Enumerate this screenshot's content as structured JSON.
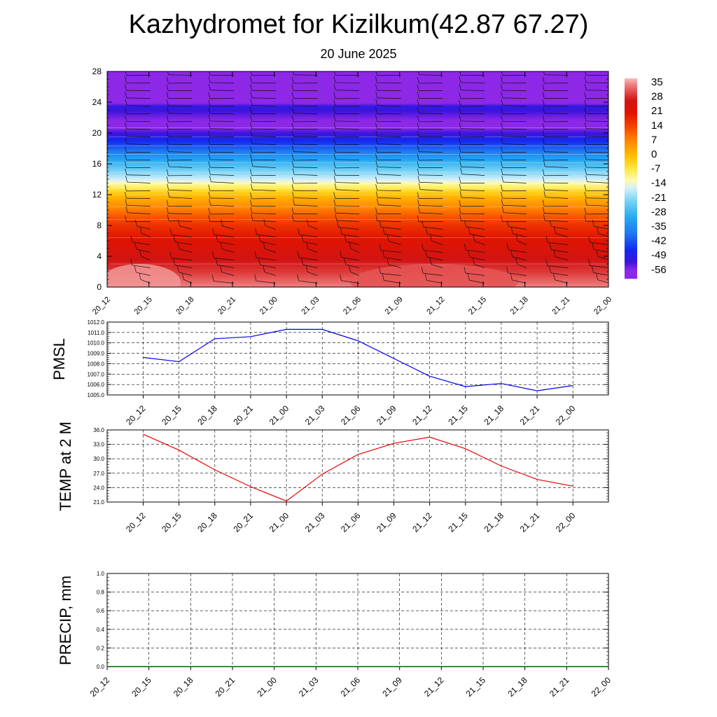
{
  "header": {
    "title": "Kazhydromet for Kizilkum(42.87 67.27)",
    "subtitle": "20 June 2025"
  },
  "time_labels": [
    "20_12",
    "20_15",
    "20_18",
    "20_21",
    "21_00",
    "21_03",
    "21_06",
    "21_09",
    "21_12",
    "21_15",
    "21_18",
    "21_21",
    "22_00"
  ],
  "chart_data": [
    {
      "type": "heatmap",
      "name": "temperature-height cross-section",
      "x_categories": [
        "20_12",
        "20_15",
        "20_18",
        "20_21",
        "21_00",
        "21_03",
        "21_06",
        "21_09",
        "21_12",
        "21_15",
        "21_18",
        "21_21",
        "22_00"
      ],
      "y_ticks": [
        0,
        4,
        8,
        12,
        16,
        20,
        24,
        28
      ],
      "ylim": [
        0,
        28
      ],
      "colorbar_labels": [
        "35",
        "28",
        "21",
        "14",
        "7",
        "0",
        "-7",
        "-14",
        "-21",
        "-28",
        "-35",
        "-42",
        "-49",
        "-56"
      ],
      "colorbar_range": [
        -60,
        38
      ],
      "temperature_profile_by_height": [
        {
          "h": 0,
          "t": 35
        },
        {
          "h": 2,
          "t": 30
        },
        {
          "h": 4,
          "t": 26
        },
        {
          "h": 6,
          "t": 22
        },
        {
          "h": 8,
          "t": 17
        },
        {
          "h": 10,
          "t": 9
        },
        {
          "h": 12,
          "t": 0
        },
        {
          "h": 13.5,
          "t": -12
        },
        {
          "h": 14,
          "t": -16
        },
        {
          "h": 16,
          "t": -27
        },
        {
          "h": 18,
          "t": -40
        },
        {
          "h": 20,
          "t": -52
        },
        {
          "h": 21,
          "t": -58
        },
        {
          "h": 22,
          "t": -55
        },
        {
          "h": 23.5,
          "t": -50
        },
        {
          "h": 24,
          "t": -60
        },
        {
          "h": 28,
          "t": -60
        }
      ],
      "wind_barbs": "shown"
    },
    {
      "type": "line",
      "name": "PMSL",
      "ylabel": "PMSL",
      "categories": [
        "20_12",
        "20_15",
        "20_18",
        "20_21",
        "21_00",
        "21_03",
        "21_06",
        "21_09",
        "21_12",
        "21_15",
        "21_18",
        "21_21",
        "22_00"
      ],
      "values": [
        1008.6,
        1008.2,
        1010.4,
        1010.6,
        1011.3,
        1011.3,
        1010.2,
        1008.5,
        1006.8,
        1005.8,
        1006.1,
        1005.4,
        1005.9
      ],
      "ylim": [
        1005.0,
        1012.0
      ],
      "y_ticks": [
        "1005.0",
        "1006.0",
        "1007.0",
        "1008.0",
        "1009.0",
        "1010.0",
        "1011.0",
        "1012.0"
      ],
      "color": "#0000ee",
      "grid": true
    },
    {
      "type": "line",
      "name": "TEMP at 2 M",
      "ylabel": "TEMP at 2 M",
      "categories": [
        "20_12",
        "20_15",
        "20_18",
        "20_21",
        "21_00",
        "21_03",
        "21_06",
        "21_09",
        "21_12",
        "21_15",
        "21_18",
        "21_21",
        "22_00"
      ],
      "values": [
        35.1,
        31.8,
        27.7,
        24.2,
        21.2,
        26.8,
        30.9,
        33.2,
        34.5,
        32.1,
        28.5,
        25.7,
        24.3
      ],
      "ylim": [
        21.0,
        36.0
      ],
      "y_ticks": [
        "21.0",
        "24.0",
        "27.0",
        "30.0",
        "33.0",
        "36.0"
      ],
      "color": "#ee0000",
      "grid": true
    },
    {
      "type": "line",
      "name": "PRECIP, mm",
      "ylabel": "PRECIP, mm",
      "categories": [
        "20_12",
        "20_15",
        "20_18",
        "20_21",
        "21_00",
        "21_03",
        "21_06",
        "21_09",
        "21_12",
        "21_15",
        "21_18",
        "21_21",
        "22_00"
      ],
      "values": [
        0,
        0,
        0,
        0,
        0,
        0,
        0,
        0,
        0,
        0,
        0,
        0,
        0
      ],
      "ylim": [
        0.0,
        1.0
      ],
      "y_ticks": [
        "0.0",
        "0.2",
        "0.4",
        "0.6",
        "0.8",
        "1.0"
      ],
      "color": "#006400",
      "grid": true
    }
  ]
}
